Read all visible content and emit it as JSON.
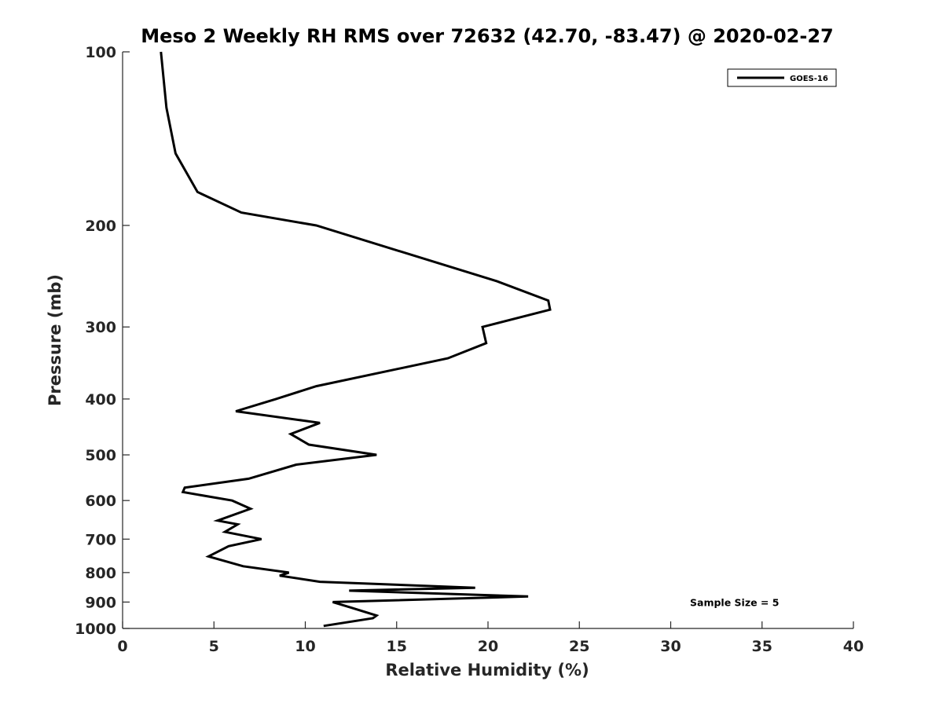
{
  "chart_data": {
    "type": "line",
    "title": "Meso 2 Weekly RH RMS over 72632 (42.70, -83.47) @ 2020-02-27",
    "xlabel": "Relative Humidity (%)",
    "ylabel": "Pressure (mb)",
    "xlim": [
      0,
      40
    ],
    "ylim": [
      100,
      1000
    ],
    "yscale": "log",
    "y_reversed": true,
    "grid": false,
    "x_ticks": [
      0,
      5,
      10,
      15,
      20,
      25,
      30,
      35,
      40
    ],
    "x_tick_labels": [
      "0",
      "5",
      "10",
      "15",
      "20",
      "25",
      "30",
      "35",
      "40"
    ],
    "y_ticks": [
      100,
      200,
      300,
      400,
      500,
      600,
      700,
      800,
      900,
      1000
    ],
    "y_tick_labels": [
      "100",
      "200",
      "300",
      "400",
      "500",
      "600",
      "700",
      "800",
      "900",
      "1000"
    ],
    "legend_position": "top-right",
    "series": [
      {
        "name": "GOES-16",
        "color": "#000000",
        "points": [
          [
            2.1,
            100
          ],
          [
            2.4,
            125
          ],
          [
            2.9,
            150
          ],
          [
            4.1,
            175
          ],
          [
            6.5,
            190
          ],
          [
            10.6,
            200
          ],
          [
            20.5,
            250
          ],
          [
            23.3,
            270
          ],
          [
            23.4,
            280
          ],
          [
            19.7,
            300
          ],
          [
            19.9,
            320
          ],
          [
            17.8,
            340
          ],
          [
            10.6,
            380
          ],
          [
            8.4,
            400
          ],
          [
            6.2,
            420
          ],
          [
            10.8,
            440
          ],
          [
            9.2,
            460
          ],
          [
            10.2,
            480
          ],
          [
            13.9,
            500
          ],
          [
            9.5,
            520
          ],
          [
            6.9,
            550
          ],
          [
            3.4,
            570
          ],
          [
            3.3,
            580
          ],
          [
            6.0,
            600
          ],
          [
            7.0,
            620
          ],
          [
            5.2,
            650
          ],
          [
            6.3,
            660
          ],
          [
            5.6,
            680
          ],
          [
            7.6,
            700
          ],
          [
            5.8,
            720
          ],
          [
            4.7,
            750
          ],
          [
            6.6,
            780
          ],
          [
            9.1,
            800
          ],
          [
            8.6,
            810
          ],
          [
            10.8,
            830
          ],
          [
            19.3,
            850
          ],
          [
            12.4,
            860
          ],
          [
            22.2,
            880
          ],
          [
            11.5,
            900
          ],
          [
            12.5,
            920
          ],
          [
            13.9,
            950
          ],
          [
            13.7,
            960
          ],
          [
            11.0,
            990
          ]
        ]
      }
    ],
    "annotations": [
      {
        "text": "Sample Size = 5",
        "x": 35,
        "y": 900
      }
    ]
  }
}
